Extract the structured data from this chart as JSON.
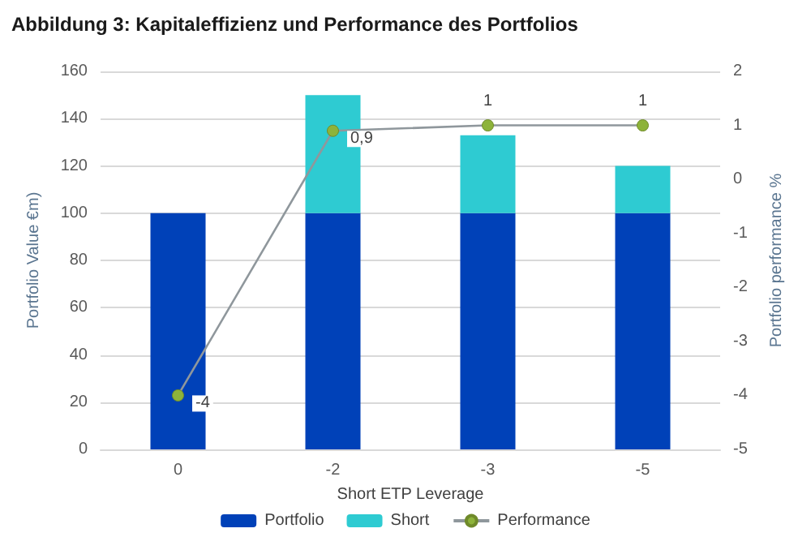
{
  "chart_data": {
    "type": "bar",
    "title": "Abbildung 3: Kapitaleffizienz und Performance des Portfolios",
    "xlabel": "Short ETP Leverage",
    "ylabel": "Portfolio Value €m)",
    "y2label": "Portfolio performance %",
    "categories": [
      "0",
      "-2",
      "-3",
      "-5"
    ],
    "stacked": true,
    "series": [
      {
        "name": "Portfolio",
        "color": "#0041b8",
        "values": [
          100,
          100,
          100,
          100
        ]
      },
      {
        "name": "Short",
        "color": "#2ecbd2",
        "values": [
          null,
          50,
          33,
          20
        ]
      },
      {
        "name": "Performance",
        "type": "line",
        "axis": "y2",
        "color": "#8db33a",
        "marker": "circle",
        "values": [
          -4,
          0.9,
          1,
          1
        ],
        "value_labels": [
          "-4",
          "0,9",
          "1",
          "1"
        ]
      }
    ],
    "ylim": [
      0,
      160
    ],
    "yticks": [
      0,
      20,
      40,
      60,
      80,
      100,
      120,
      140,
      160
    ],
    "y2lim": [
      -5,
      2
    ],
    "y2ticks": [
      -5,
      -4,
      -3,
      -2,
      -1,
      0,
      1,
      2
    ],
    "grid": "y",
    "legend": "bottom"
  }
}
